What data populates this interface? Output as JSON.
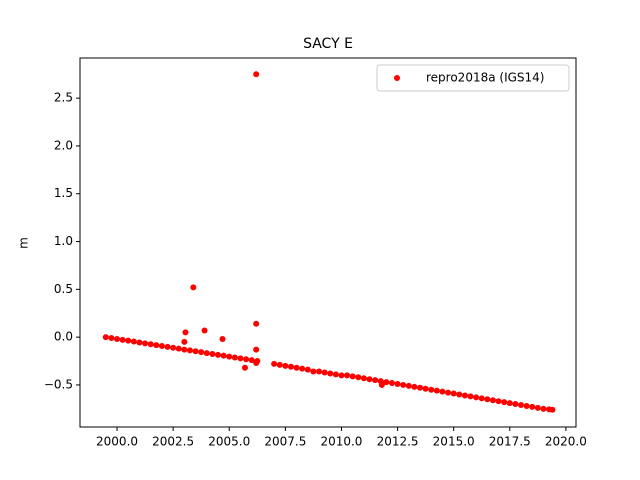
{
  "chart_data": {
    "type": "scatter",
    "title": "SACY E",
    "ylabel": "m",
    "xlim": [
      1998.35,
      2020.45
    ],
    "xticks": [
      {
        "value": 2000,
        "label": "2000.0"
      },
      {
        "value": 2002.5,
        "label": "2002.5"
      },
      {
        "value": 2005,
        "label": "2005.0"
      },
      {
        "value": 2007.5,
        "label": "2007.5"
      },
      {
        "value": 2010,
        "label": "2010.0"
      },
      {
        "value": 2012.5,
        "label": "2012.5"
      },
      {
        "value": 2015,
        "label": "2015.0"
      },
      {
        "value": 2017.5,
        "label": "2017.5"
      },
      {
        "value": 2020,
        "label": "2020.0"
      }
    ],
    "ylim": [
      -0.94,
      2.92
    ],
    "yticks": [
      {
        "value": -0.5,
        "label": "−0.5"
      },
      {
        "value": 0,
        "label": "0.0"
      },
      {
        "value": 0.5,
        "label": "0.5"
      },
      {
        "value": 1,
        "label": "1.0"
      },
      {
        "value": 1.5,
        "label": "1.5"
      },
      {
        "value": 2,
        "label": "2.0"
      },
      {
        "value": 2.5,
        "label": "2.5"
      }
    ],
    "legend": "upper right",
    "series": [
      {
        "name": "repro2018a (IGS14)",
        "color": "#ff0000",
        "x": [
          1999.5,
          1999.75,
          2000,
          2000.25,
          2000.5,
          2000.75,
          2001,
          2001.25,
          2001.5,
          2001.75,
          2002,
          2002.25,
          2002.5,
          2002.75,
          2003,
          2003.25,
          2003.5,
          2003.75,
          2004,
          2004.25,
          2004.5,
          2004.75,
          2005,
          2005.25,
          2005.5,
          2005.75,
          2006,
          2006.25,
          2007,
          2007.25,
          2007.5,
          2007.75,
          2008,
          2008.25,
          2008.5,
          2008.75,
          2009,
          2009.25,
          2009.5,
          2009.75,
          2010,
          2010.25,
          2010.5,
          2010.75,
          2011,
          2011.25,
          2011.5,
          2011.75,
          2012,
          2012.25,
          2012.5,
          2012.75,
          2013,
          2013.25,
          2013.5,
          2013.75,
          2014,
          2014.25,
          2014.5,
          2014.75,
          2015,
          2015.25,
          2015.5,
          2015.75,
          2016,
          2016.25,
          2016.5,
          2016.75,
          2017,
          2017.25,
          2017.5,
          2017.75,
          2018,
          2018.25,
          2018.5,
          2018.75,
          2019,
          2019.25,
          2019.4,
          2006.2,
          2003.4,
          2003.05,
          2003.9,
          2004.7,
          2006.2,
          2003.0,
          2006.2,
          2005.7,
          2006.2,
          2011.8
        ],
        "values": [
          0,
          -0.009,
          -0.019,
          -0.028,
          -0.037,
          -0.046,
          -0.056,
          -0.065,
          -0.074,
          -0.083,
          -0.093,
          -0.102,
          -0.111,
          -0.12,
          -0.13,
          -0.139,
          -0.148,
          -0.157,
          -0.167,
          -0.176,
          -0.185,
          -0.194,
          -0.204,
          -0.213,
          -0.222,
          -0.231,
          -0.241,
          -0.25,
          -0.28,
          -0.29,
          -0.3,
          -0.31,
          -0.32,
          -0.33,
          -0.34,
          -0.36,
          -0.36,
          -0.37,
          -0.38,
          -0.39,
          -0.4,
          -0.4,
          -0.41,
          -0.42,
          -0.43,
          -0.44,
          -0.45,
          -0.46,
          -0.47,
          -0.48,
          -0.49,
          -0.5,
          -0.51,
          -0.52,
          -0.53,
          -0.54,
          -0.55,
          -0.56,
          -0.57,
          -0.58,
          -0.59,
          -0.6,
          -0.61,
          -0.62,
          -0.63,
          -0.64,
          -0.65,
          -0.66,
          -0.67,
          -0.68,
          -0.69,
          -0.7,
          -0.71,
          -0.72,
          -0.73,
          -0.74,
          -0.75,
          -0.755,
          -0.76,
          2.75,
          0.52,
          0.05,
          0.07,
          -0.02,
          0.14,
          -0.05,
          -0.13,
          -0.32,
          -0.27,
          -0.5
        ]
      }
    ]
  }
}
